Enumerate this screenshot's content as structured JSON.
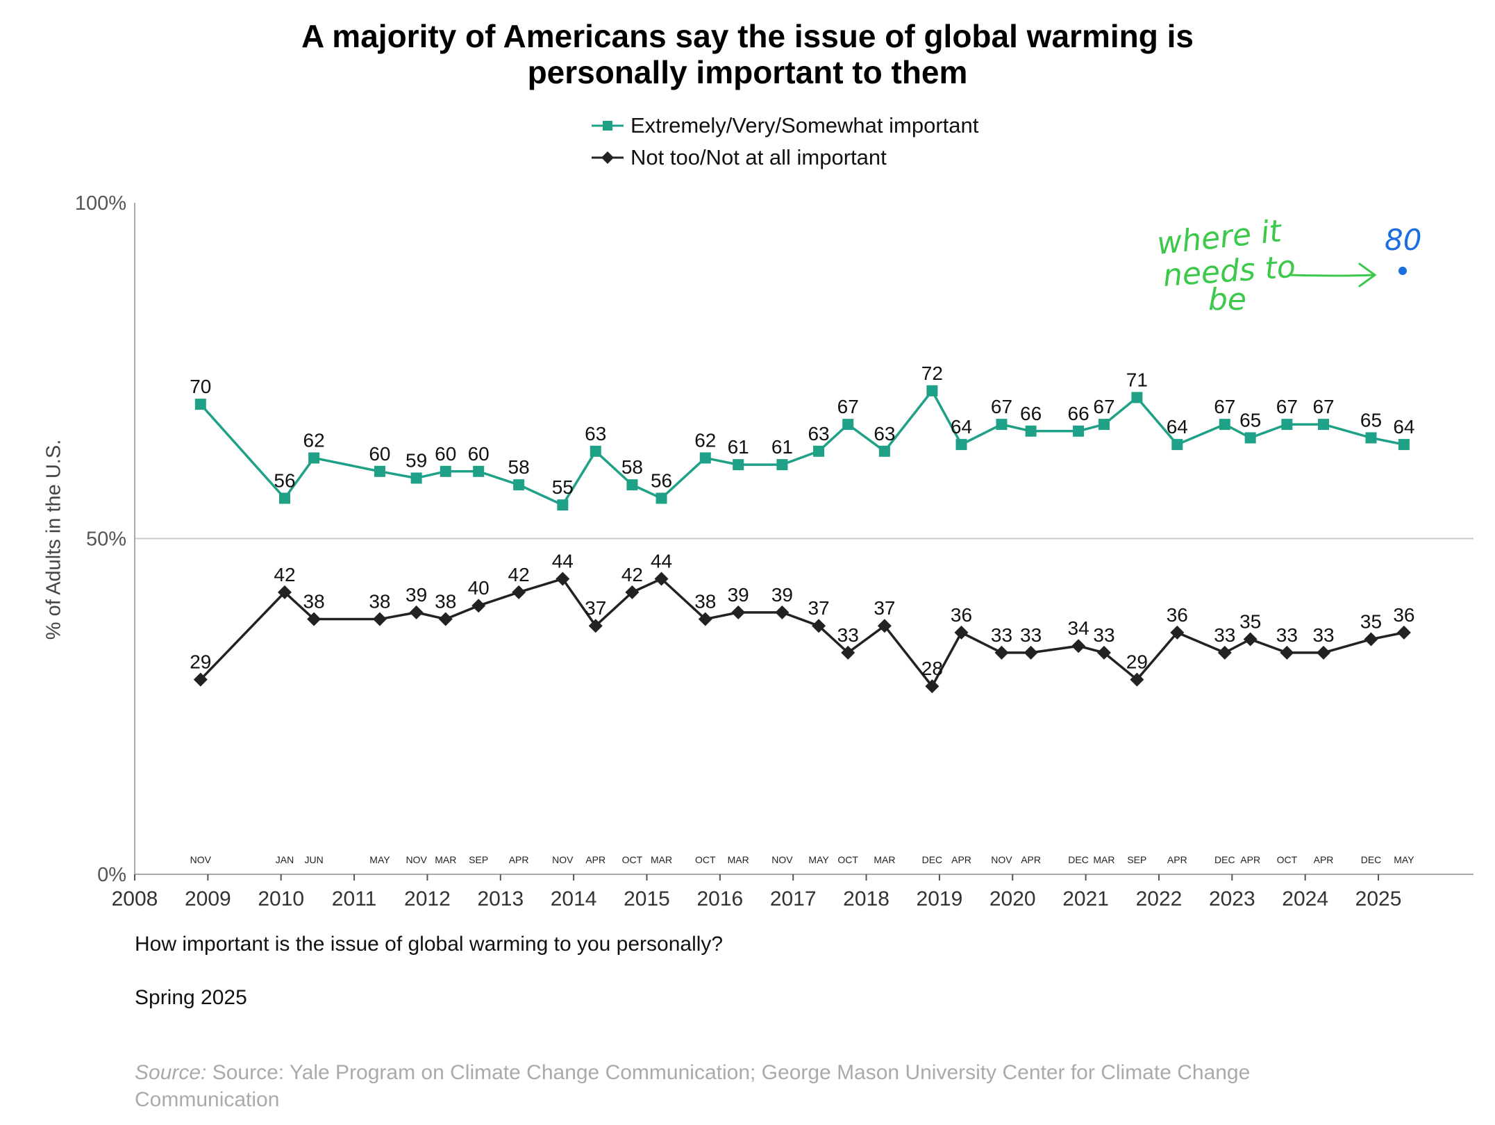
{
  "colors": {
    "important": "#1fa187",
    "not_important": "#222222",
    "axis": "#aaaaaa",
    "annotation_green": "#3cc84a",
    "annotation_blue": "#1a6ee0"
  },
  "chart_data": {
    "type": "line",
    "title": [
      "A majority of Americans say the issue of global warming is",
      "personally important to them"
    ],
    "ylabel": "% of Adults in the U.S.",
    "ylim": [
      0,
      100
    ],
    "xlim": [
      2008,
      2026.3
    ],
    "y_ticks": [
      {
        "value": 0,
        "label": "0%"
      },
      {
        "value": 50,
        "label": "50%"
      },
      {
        "value": 100,
        "label": "100%"
      }
    ],
    "gridlines": [
      50
    ],
    "year_ticks": [
      2008,
      2009,
      2010,
      2011,
      2012,
      2013,
      2014,
      2015,
      2016,
      2017,
      2018,
      2019,
      2020,
      2021,
      2022,
      2023,
      2024,
      2025
    ],
    "legend_position": "top-center",
    "survey_waves": [
      {
        "date": 2008.9,
        "month": "NOV"
      },
      {
        "date": 2010.05,
        "month": "JAN"
      },
      {
        "date": 2010.45,
        "month": "JUN"
      },
      {
        "date": 2011.35,
        "month": "MAY"
      },
      {
        "date": 2011.85,
        "month": "NOV"
      },
      {
        "date": 2012.25,
        "month": "MAR"
      },
      {
        "date": 2012.7,
        "month": "SEP"
      },
      {
        "date": 2013.25,
        "month": "APR"
      },
      {
        "date": 2013.85,
        "month": "NOV"
      },
      {
        "date": 2014.3,
        "month": "APR"
      },
      {
        "date": 2014.8,
        "month": "OCT"
      },
      {
        "date": 2015.2,
        "month": "MAR"
      },
      {
        "date": 2015.8,
        "month": "OCT"
      },
      {
        "date": 2016.25,
        "month": "MAR"
      },
      {
        "date": 2016.85,
        "month": "NOV"
      },
      {
        "date": 2017.35,
        "month": "MAY"
      },
      {
        "date": 2017.75,
        "month": "OCT"
      },
      {
        "date": 2018.25,
        "month": "MAR"
      },
      {
        "date": 2018.9,
        "month": "DEC"
      },
      {
        "date": 2019.3,
        "month": "APR"
      },
      {
        "date": 2019.85,
        "month": "NOV"
      },
      {
        "date": 2020.25,
        "month": "APR"
      },
      {
        "date": 2020.9,
        "month": "DEC"
      },
      {
        "date": 2021.25,
        "month": "MAR"
      },
      {
        "date": 2021.7,
        "month": "SEP"
      },
      {
        "date": 2022.25,
        "month": "APR"
      },
      {
        "date": 2022.9,
        "month": "DEC"
      },
      {
        "date": 2023.25,
        "month": "APR"
      },
      {
        "date": 2023.75,
        "month": "OCT"
      },
      {
        "date": 2024.25,
        "month": "APR"
      },
      {
        "date": 2024.9,
        "month": "DEC"
      },
      {
        "date": 2025.35,
        "month": "MAY"
      }
    ],
    "series": [
      {
        "name": "Extremely/Very/Somewhat important",
        "marker": "square",
        "values": [
          70,
          56,
          62,
          60,
          59,
          60,
          60,
          58,
          55,
          63,
          58,
          56,
          62,
          61,
          61,
          63,
          67,
          63,
          72,
          64,
          67,
          66,
          66,
          67,
          71,
          64,
          67,
          65,
          67,
          67,
          65,
          64
        ]
      },
      {
        "name": "Not too/Not at all important",
        "marker": "diamond",
        "values": [
          29,
          42,
          38,
          38,
          39,
          38,
          40,
          42,
          44,
          37,
          42,
          44,
          38,
          39,
          39,
          37,
          33,
          37,
          28,
          36,
          33,
          33,
          34,
          33,
          29,
          36,
          33,
          35,
          33,
          33,
          35,
          36
        ]
      }
    ]
  },
  "footer": {
    "question": "How important is the issue of global warming to you personally?",
    "period": "Spring 2025",
    "source_label": "Source:",
    "source_text": " Source: Yale Program on Climate Change Communication; George Mason University Center for Climate Change Communication"
  },
  "handwritten_note": {
    "lines": [
      "where it",
      "needs to",
      "be"
    ],
    "target_value": "80"
  }
}
